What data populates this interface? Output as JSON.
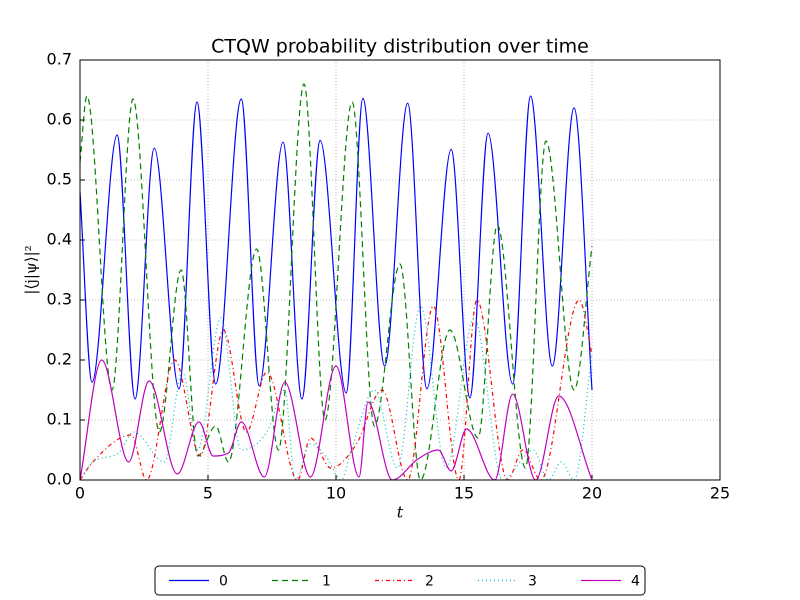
{
  "chart_data": {
    "type": "line",
    "title": "CTQW probability distribution over time",
    "xlabel": "t",
    "ylabel": "|⟨j|ψ⟩|²",
    "xlim": [
      0,
      25
    ],
    "xticks": [
      0,
      5,
      10,
      15,
      20,
      25
    ],
    "ylim": [
      0,
      0.7
    ],
    "yticks": [
      {
        "value": 0,
        "label": "0.0"
      },
      0.1,
      0.2,
      0.3,
      0.4,
      0.5,
      0.6,
      0.7
    ],
    "grid": true,
    "legend": "below",
    "series": [
      {
        "name": "0",
        "color": "#0000ff",
        "linestyle": "solid",
        "x": [
          0,
          0.47,
          1.45,
          2.15,
          2.9,
          3.87,
          4.57,
          5.3,
          6.3,
          7.0,
          7.93,
          8.67,
          9.38,
          10.4,
          11.05,
          11.9,
          12.8,
          13.55,
          14.5,
          15.23,
          15.94,
          16.9,
          17.6,
          18.45,
          19.3,
          20
        ],
        "values": [
          0.48,
          0.163,
          0.575,
          0.135,
          0.553,
          0.152,
          0.63,
          0.16,
          0.635,
          0.157,
          0.563,
          0.135,
          0.566,
          0.145,
          0.636,
          0.19,
          0.628,
          0.152,
          0.551,
          0.137,
          0.578,
          0.16,
          0.64,
          0.19,
          0.62,
          0.15
        ]
      },
      {
        "name": "1",
        "color": "#008000",
        "linestyle": "dashed",
        "x": [
          0,
          0.27,
          1.25,
          2.07,
          3.1,
          3.95,
          4.6,
          5.3,
          5.8,
          6.9,
          7.75,
          8.75,
          9.57,
          10.63,
          11.5,
          12.5,
          13.3,
          14.45,
          15.55,
          16.3,
          17.4,
          18.2,
          19.3,
          20
        ],
        "values": [
          0.53,
          0.64,
          0.15,
          0.635,
          0.08,
          0.35,
          0.04,
          0.09,
          0.03,
          0.385,
          0.05,
          0.66,
          0.1,
          0.63,
          0.09,
          0.36,
          0.0,
          0.25,
          0.07,
          0.425,
          0.02,
          0.565,
          0.15,
          0.39
        ]
      },
      {
        "name": "2",
        "color": "#ff0000",
        "linestyle": "dashdot",
        "x": [
          0,
          0.5,
          2.0,
          2.6,
          3.7,
          4.7,
          5.6,
          6.5,
          7.3,
          8.5,
          9.0,
          9.8,
          10.8,
          11.8,
          12.8,
          13.8,
          14.8,
          15.5,
          16.7,
          17.3,
          18.0,
          19.5,
          20
        ],
        "values": [
          0.0,
          0.03,
          0.075,
          0.0,
          0.2,
          0.04,
          0.25,
          0.08,
          0.18,
          0.0,
          0.07,
          0.02,
          0.06,
          0.15,
          0.0,
          0.29,
          0.0,
          0.3,
          0.0,
          0.05,
          0.0,
          0.3,
          0.21
        ]
      },
      {
        "name": "3",
        "color": "#00bfbf",
        "linestyle": "dotted",
        "x": [
          0,
          0.5,
          1.5,
          2.1,
          3.3,
          4.0,
          4.6,
          5.5,
          6.3,
          7.3,
          8.0,
          8.4,
          9.0,
          9.6,
          10.2,
          10.6,
          11.5,
          12.4,
          13.3,
          14.3,
          15.4,
          16.5,
          17.7,
          18.3,
          18.8,
          19.3,
          20
        ],
        "values": [
          0.0,
          0.03,
          0.045,
          0.08,
          0.03,
          0.18,
          0.05,
          0.27,
          0.05,
          0.08,
          0.15,
          0.0,
          0.06,
          0.04,
          0.0,
          0.05,
          0.15,
          0.02,
          0.29,
          0.02,
          0.27,
          0.0,
          0.05,
          0.0,
          0.03,
          0.0,
          0.21
        ]
      },
      {
        "name": "4",
        "color": "#bf00bf",
        "linestyle": "solid",
        "x": [
          0,
          0.85,
          1.9,
          2.7,
          3.8,
          4.65,
          5.2,
          5.8,
          6.3,
          7.2,
          8.0,
          9.0,
          10.0,
          10.9,
          11.25,
          12.2,
          13.2,
          14.0,
          14.5,
          15.1,
          16.2,
          16.9,
          17.8,
          18.7,
          20
        ],
        "values": [
          0.0,
          0.2,
          0.03,
          0.165,
          0.01,
          0.097,
          0.04,
          0.045,
          0.097,
          0.005,
          0.163,
          0.005,
          0.19,
          0.005,
          0.13,
          0.0,
          0.035,
          0.05,
          0.015,
          0.085,
          0.0,
          0.143,
          0.0,
          0.14,
          0.0
        ]
      }
    ]
  }
}
